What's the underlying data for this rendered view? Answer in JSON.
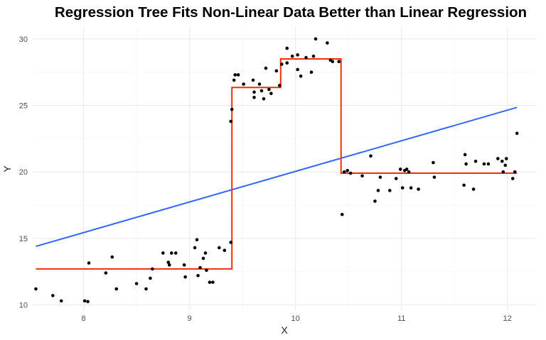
{
  "chart_data": {
    "type": "scatter",
    "title": "Regression Tree Fits Non-Linear Data Better than Linear Regression",
    "xlabel": "X",
    "ylabel": "Y",
    "xlim": [
      7.52,
      12.27
    ],
    "ylim": [
      9.6,
      30.9
    ],
    "xticks": [
      "8",
      "9",
      "10",
      "11",
      "12"
    ],
    "yticks": [
      "10",
      "15",
      "20",
      "25",
      "30"
    ],
    "grid": true,
    "colors": {
      "points": "#000000",
      "linear_fit": "#3366ff",
      "tree_fit": "#ff2d00",
      "grid_major": "#ebebeb",
      "grid_minor": "#f5f5f5"
    },
    "points": [
      {
        "x": 7.55,
        "y": 11.2
      },
      {
        "x": 7.71,
        "y": 10.7
      },
      {
        "x": 7.79,
        "y": 10.3
      },
      {
        "x": 8.01,
        "y": 10.3
      },
      {
        "x": 8.04,
        "y": 10.25
      },
      {
        "x": 8.05,
        "y": 13.15
      },
      {
        "x": 8.21,
        "y": 12.4
      },
      {
        "x": 8.27,
        "y": 13.6
      },
      {
        "x": 8.31,
        "y": 11.2
      },
      {
        "x": 8.5,
        "y": 11.6
      },
      {
        "x": 8.59,
        "y": 11.2
      },
      {
        "x": 8.63,
        "y": 12.0
      },
      {
        "x": 8.65,
        "y": 12.7
      },
      {
        "x": 8.75,
        "y": 13.9
      },
      {
        "x": 8.8,
        "y": 13.2
      },
      {
        "x": 8.81,
        "y": 13.0
      },
      {
        "x": 8.83,
        "y": 13.9
      },
      {
        "x": 8.87,
        "y": 13.9
      },
      {
        "x": 8.95,
        "y": 13.0
      },
      {
        "x": 8.96,
        "y": 12.1
      },
      {
        "x": 9.05,
        "y": 14.3
      },
      {
        "x": 9.07,
        "y": 14.9
      },
      {
        "x": 9.08,
        "y": 12.2
      },
      {
        "x": 9.1,
        "y": 12.8
      },
      {
        "x": 9.13,
        "y": 13.5
      },
      {
        "x": 9.15,
        "y": 13.9
      },
      {
        "x": 9.16,
        "y": 12.6
      },
      {
        "x": 9.19,
        "y": 11.7
      },
      {
        "x": 9.22,
        "y": 11.7
      },
      {
        "x": 9.28,
        "y": 14.3
      },
      {
        "x": 9.33,
        "y": 14.1
      },
      {
        "x": 9.39,
        "y": 14.7
      },
      {
        "x": 9.39,
        "y": 23.8
      },
      {
        "x": 9.4,
        "y": 24.7
      },
      {
        "x": 9.42,
        "y": 26.9
      },
      {
        "x": 9.43,
        "y": 27.3
      },
      {
        "x": 9.46,
        "y": 27.3
      },
      {
        "x": 9.51,
        "y": 26.6
      },
      {
        "x": 9.6,
        "y": 26.9
      },
      {
        "x": 9.61,
        "y": 26.0
      },
      {
        "x": 9.61,
        "y": 25.6
      },
      {
        "x": 9.66,
        "y": 26.6
      },
      {
        "x": 9.68,
        "y": 26.1
      },
      {
        "x": 9.7,
        "y": 25.5
      },
      {
        "x": 9.72,
        "y": 27.8
      },
      {
        "x": 9.75,
        "y": 26.2
      },
      {
        "x": 9.77,
        "y": 25.9
      },
      {
        "x": 9.82,
        "y": 27.6
      },
      {
        "x": 9.85,
        "y": 26.5
      },
      {
        "x": 9.87,
        "y": 28.1
      },
      {
        "x": 9.92,
        "y": 28.2
      },
      {
        "x": 9.92,
        "y": 29.3
      },
      {
        "x": 9.97,
        "y": 28.7
      },
      {
        "x": 10.02,
        "y": 28.8
      },
      {
        "x": 10.02,
        "y": 27.7
      },
      {
        "x": 10.05,
        "y": 27.2
      },
      {
        "x": 10.1,
        "y": 28.6
      },
      {
        "x": 10.15,
        "y": 27.5
      },
      {
        "x": 10.17,
        "y": 28.7
      },
      {
        "x": 10.19,
        "y": 30.0
      },
      {
        "x": 10.3,
        "y": 29.7
      },
      {
        "x": 10.33,
        "y": 28.4
      },
      {
        "x": 10.35,
        "y": 28.3
      },
      {
        "x": 10.41,
        "y": 28.3
      },
      {
        "x": 10.44,
        "y": 16.8
      },
      {
        "x": 10.46,
        "y": 20.0
      },
      {
        "x": 10.49,
        "y": 20.1
      },
      {
        "x": 10.52,
        "y": 19.9
      },
      {
        "x": 10.63,
        "y": 19.7
      },
      {
        "x": 10.71,
        "y": 21.2
      },
      {
        "x": 10.75,
        "y": 17.8
      },
      {
        "x": 10.78,
        "y": 18.6
      },
      {
        "x": 10.8,
        "y": 19.6
      },
      {
        "x": 10.89,
        "y": 18.6
      },
      {
        "x": 10.95,
        "y": 19.5
      },
      {
        "x": 10.99,
        "y": 20.2
      },
      {
        "x": 11.01,
        "y": 18.8
      },
      {
        "x": 11.03,
        "y": 20.1
      },
      {
        "x": 11.05,
        "y": 20.2
      },
      {
        "x": 11.07,
        "y": 20.0
      },
      {
        "x": 11.09,
        "y": 18.8
      },
      {
        "x": 11.16,
        "y": 18.7
      },
      {
        "x": 11.3,
        "y": 20.7
      },
      {
        "x": 11.31,
        "y": 19.6
      },
      {
        "x": 11.59,
        "y": 19.0
      },
      {
        "x": 11.6,
        "y": 21.3
      },
      {
        "x": 11.61,
        "y": 20.6
      },
      {
        "x": 11.68,
        "y": 18.7
      },
      {
        "x": 11.7,
        "y": 20.8
      },
      {
        "x": 11.78,
        "y": 20.6
      },
      {
        "x": 11.82,
        "y": 20.6
      },
      {
        "x": 11.91,
        "y": 21.0
      },
      {
        "x": 11.95,
        "y": 20.8
      },
      {
        "x": 11.96,
        "y": 20.0
      },
      {
        "x": 11.98,
        "y": 20.5
      },
      {
        "x": 11.99,
        "y": 21.0
      },
      {
        "x": 12.05,
        "y": 19.5
      },
      {
        "x": 12.07,
        "y": 20.0
      },
      {
        "x": 12.09,
        "y": 22.9
      }
    ],
    "series": [
      {
        "type": "line",
        "x": [
          7.55,
          12.09
        ],
        "y": [
          14.4,
          24.85
        ]
      },
      {
        "type": "step",
        "x": [
          7.55,
          9.4,
          9.4,
          9.86,
          9.86,
          10.43,
          10.43,
          12.09
        ],
        "y": [
          12.7,
          12.7,
          26.35,
          26.35,
          28.5,
          28.5,
          19.9,
          19.9
        ]
      }
    ]
  }
}
